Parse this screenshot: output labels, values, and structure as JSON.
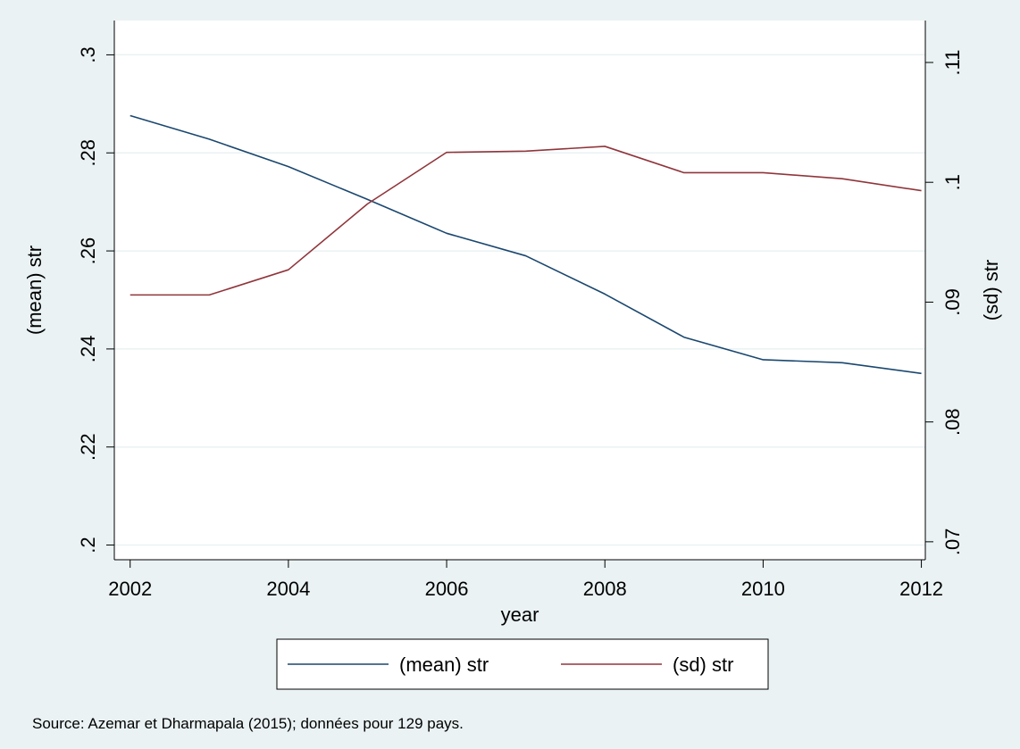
{
  "chart_data": {
    "type": "line",
    "xlabel": "year",
    "ylabel_left": "(mean) str",
    "ylabel_right": "(sd) str",
    "x": [
      2002,
      2003,
      2004,
      2005,
      2006,
      2007,
      2008,
      2009,
      2010,
      2011,
      2012
    ],
    "x_ticks": [
      2002,
      2004,
      2006,
      2008,
      2010,
      2012
    ],
    "x_tick_labels": [
      "2002",
      "2004",
      "2006",
      "2008",
      "2010",
      "2012"
    ],
    "xlim": [
      2001.8,
      2012.05
    ],
    "ylim_left": [
      0.197,
      0.307
    ],
    "y_left_ticks": [
      0.2,
      0.22,
      0.24,
      0.26,
      0.28,
      0.3
    ],
    "y_left_tick_labels": [
      ".2",
      ".22",
      ".24",
      ".26",
      ".28",
      ".3"
    ],
    "ylim_right": [
      0.0685,
      0.1135
    ],
    "y_right_ticks": [
      0.07,
      0.08,
      0.09,
      0.1,
      0.11
    ],
    "y_right_tick_labels": [
      ".07",
      ".08",
      ".09",
      ".1",
      ".11"
    ],
    "grid": true,
    "legend_position": "bottom",
    "series": [
      {
        "name": "(mean) str",
        "axis": "left",
        "color": "#1a476f",
        "values": [
          0.2876,
          0.2828,
          0.2772,
          0.2705,
          0.2636,
          0.259,
          0.2512,
          0.2424,
          0.2378,
          0.2372,
          0.235
        ]
      },
      {
        "name": "(sd) str",
        "axis": "right",
        "color": "#90353b",
        "values": [
          0.0906,
          0.0906,
          0.0927,
          0.0982,
          0.1025,
          0.1026,
          0.103,
          0.1008,
          0.1008,
          0.1003,
          0.0993
        ]
      }
    ]
  },
  "note": "Source: Azemar et Dharmapala (2015); données pour 129 pays.",
  "colors": {
    "outer_background": "#eaf2f3",
    "plot_background": "#ffffff",
    "grid": "#eaf2f3"
  }
}
